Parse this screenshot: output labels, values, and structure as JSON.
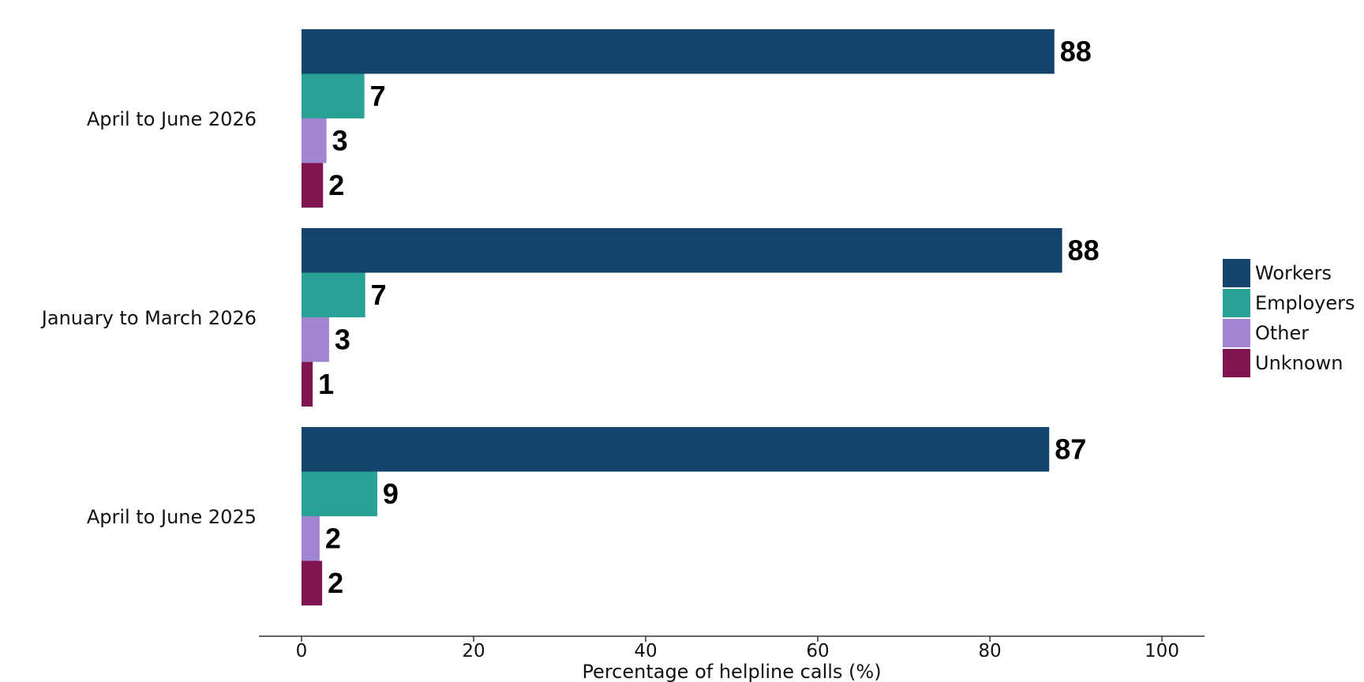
{
  "chart_data": {
    "type": "bar",
    "orientation": "horizontal",
    "categories": [
      "April to June 2026",
      "January to March 2026",
      "April to June 2025"
    ],
    "series": [
      {
        "name": "Workers",
        "color": "#14446c",
        "values": [
          87.5,
          88.4,
          86.9
        ]
      },
      {
        "name": "Employers",
        "color": "#28a197",
        "values": [
          7.3,
          7.4,
          8.8
        ]
      },
      {
        "name": "Other",
        "color": "#a285d1",
        "values": [
          2.9,
          3.2,
          2.1
        ]
      },
      {
        "name": "Unknown",
        "color": "#801650",
        "values": [
          2.5,
          1.3,
          2.4
        ]
      }
    ],
    "data_labels": [
      [
        "88",
        "7",
        "3",
        "2"
      ],
      [
        "88",
        "7",
        "3",
        "1"
      ],
      [
        "87",
        "9",
        "2",
        "2"
      ]
    ],
    "x_ticks": [
      "0",
      "20",
      "40",
      "60",
      "80",
      "100"
    ],
    "xlabel": "Percentage of helpline calls (%)",
    "xlim": [
      0,
      100
    ],
    "grid": false,
    "legend": "right"
  }
}
